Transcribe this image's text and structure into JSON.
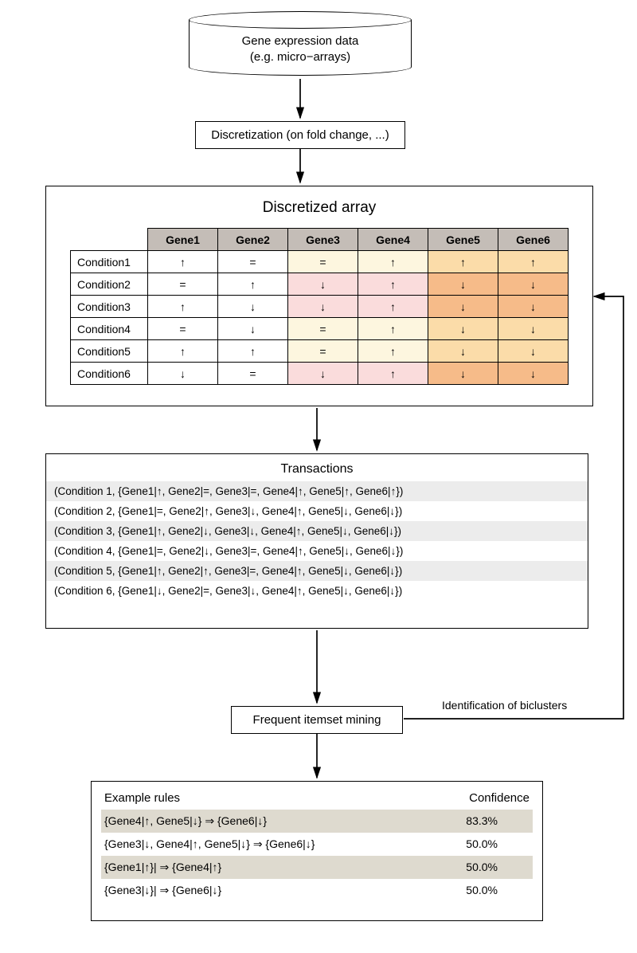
{
  "cylinder": {
    "line1": "Gene expression data",
    "line2": "(e.g. micro−arrays)"
  },
  "discretization_label": "Discretization (on fold change, ...)",
  "discretized": {
    "title": "Discretized array",
    "col_widths": {
      "cond": 97,
      "gene": 88
    },
    "header_bg": "#c4bdb7",
    "colors": {
      "none": "#ffffff",
      "cream": "#fdf6df",
      "pink": "#fadcdc",
      "orangeL": "#fbdca9",
      "orangeD": "#f6bb89"
    },
    "genes": [
      "Gene1",
      "Gene2",
      "Gene3",
      "Gene4",
      "Gene5",
      "Gene6"
    ],
    "conditions": [
      "Condition1",
      "Condition2",
      "Condition3",
      "Condition4",
      "Condition5",
      "Condition6"
    ],
    "cells": [
      [
        {
          "v": "↑",
          "c": "none"
        },
        {
          "v": "=",
          "c": "none"
        },
        {
          "v": "=",
          "c": "cream"
        },
        {
          "v": "↑",
          "c": "cream"
        },
        {
          "v": "↑",
          "c": "orangeL"
        },
        {
          "v": "↑",
          "c": "orangeL"
        }
      ],
      [
        {
          "v": "=",
          "c": "none"
        },
        {
          "v": "↑",
          "c": "none"
        },
        {
          "v": "↓",
          "c": "pink"
        },
        {
          "v": "↑",
          "c": "pink"
        },
        {
          "v": "↓",
          "c": "orangeD"
        },
        {
          "v": "↓",
          "c": "orangeD"
        }
      ],
      [
        {
          "v": "↑",
          "c": "none"
        },
        {
          "v": "↓",
          "c": "none"
        },
        {
          "v": "↓",
          "c": "pink"
        },
        {
          "v": "↑",
          "c": "pink"
        },
        {
          "v": "↓",
          "c": "orangeD"
        },
        {
          "v": "↓",
          "c": "orangeD"
        }
      ],
      [
        {
          "v": "=",
          "c": "none"
        },
        {
          "v": "↓",
          "c": "none"
        },
        {
          "v": "=",
          "c": "cream"
        },
        {
          "v": "↑",
          "c": "cream"
        },
        {
          "v": "↓",
          "c": "orangeL"
        },
        {
          "v": "↓",
          "c": "orangeL"
        }
      ],
      [
        {
          "v": "↑",
          "c": "none"
        },
        {
          "v": "↑",
          "c": "none"
        },
        {
          "v": "=",
          "c": "cream"
        },
        {
          "v": "↑",
          "c": "cream"
        },
        {
          "v": "↓",
          "c": "orangeL"
        },
        {
          "v": "↓",
          "c": "orangeL"
        }
      ],
      [
        {
          "v": "↓",
          "c": "none"
        },
        {
          "v": "=",
          "c": "none"
        },
        {
          "v": "↓",
          "c": "pink"
        },
        {
          "v": "↑",
          "c": "pink"
        },
        {
          "v": "↓",
          "c": "orangeD"
        },
        {
          "v": "↓",
          "c": "orangeD"
        }
      ]
    ]
  },
  "transactions": {
    "title": "Transactions",
    "stripe_colors": [
      "#ececec",
      "#ffffff"
    ],
    "rows": [
      "(Condition 1, {Gene1|↑, Gene2|=, Gene3|=, Gene4|↑, Gene5|↑, Gene6|↑})",
      "(Condition 2, {Gene1|=, Gene2|↑, Gene3|↓, Gene4|↑, Gene5|↓, Gene6|↓})",
      "(Condition 3, {Gene1|↑, Gene2|↓, Gene3|↓, Gene4|↑, Gene5|↓, Gene6|↓})",
      "(Condition 4, {Gene1|=, Gene2|↓, Gene3|=, Gene4|↑, Gene5|↓, Gene6|↓})",
      "(Condition 5, {Gene1|↑, Gene2|↑, Gene3|=, Gene4|↑, Gene5|↓, Gene6|↓})",
      "(Condition 6, {Gene1|↓, Gene2|=, Gene3|↓, Gene4|↑, Gene5|↓, Gene6|↓})"
    ]
  },
  "fim_label": "Frequent itemset mining",
  "bicluster_label": "Identification of biclusters",
  "rules": {
    "header_left": "Example rules",
    "header_right": "Confidence",
    "stripe_colors": [
      "#dedacf",
      "#ffffff"
    ],
    "rows": [
      {
        "rule": "{Gene4|↑, Gene5|↓} ⇒ {Gene6|↓}",
        "conf": "83.3%"
      },
      {
        "rule": "{Gene3|↓, Gene4|↑, Gene5|↓} ⇒ {Gene6|↓}",
        "conf": "50.0%"
      },
      {
        "rule": "{Gene1|↑}| ⇒ {Gene4|↑}",
        "conf": "50.0%"
      },
      {
        "rule": "{Gene3|↓}| ⇒ {Gene6|↓}",
        "conf": "50.0%"
      }
    ]
  }
}
